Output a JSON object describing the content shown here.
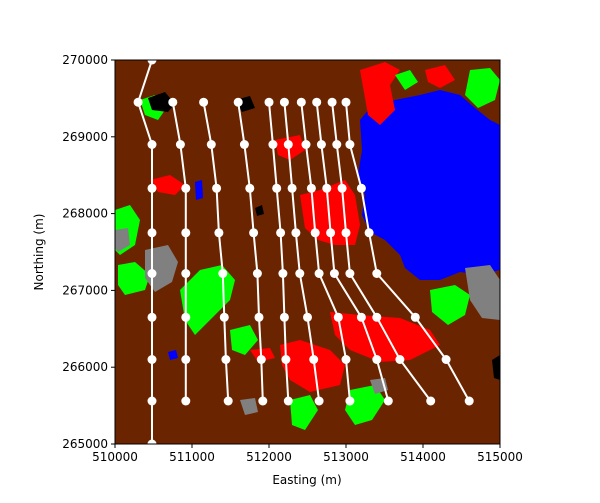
{
  "chart_data": {
    "type": "line",
    "xlabel": "Easting (m)",
    "ylabel": "Northing (m)",
    "xlim": [
      510000,
      515000
    ],
    "ylim": [
      265000,
      270000
    ],
    "xticks": [
      510000,
      511000,
      512000,
      513000,
      514000,
      515000
    ],
    "xtick_labels": [
      "510000",
      "511000",
      "512000",
      "513000",
      "514000",
      "515000"
    ],
    "yticks": [
      265000,
      266000,
      267000,
      268000,
      269000,
      270000
    ],
    "ytick_labels": [
      "265000",
      "266000",
      "267000",
      "268000",
      "269000",
      "270000"
    ],
    "background": "land-cover raster",
    "land_cover_colors": {
      "land": "#6b2400",
      "water": "#0000ff",
      "urban": "#ff0000",
      "grass": "#00ff00",
      "rock": "#808080",
      "shadow": "#000000"
    },
    "line_color": "#ffffff",
    "marker": "circle",
    "series": [
      {
        "x": [
          510300,
          510480,
          510480,
          510480,
          510480,
          510480,
          510480,
          510480,
          510480,
          510480
        ],
        "y": [
          269450,
          268900,
          268330,
          267750,
          267220,
          266650,
          266100,
          265560,
          265000,
          270000
        ]
      },
      {
        "x": [
          510750,
          510850,
          510920,
          510920,
          510920,
          510920,
          510920,
          510920
        ],
        "y": [
          269450,
          268900,
          268330,
          267750,
          267220,
          266650,
          266100,
          265560
        ]
      },
      {
        "x": [
          511150,
          511250,
          511320,
          511350,
          511400,
          511420,
          511440,
          511470
        ],
        "y": [
          269450,
          268900,
          268330,
          267750,
          267220,
          266650,
          266100,
          265560
        ]
      },
      {
        "x": [
          511600,
          511680,
          511750,
          511800,
          511850,
          511870,
          511900,
          511920
        ],
        "y": [
          269450,
          268900,
          268330,
          267750,
          267220,
          266650,
          266100,
          265560
        ]
      },
      {
        "x": [
          512000,
          512050,
          512100,
          512150,
          512180,
          512200,
          512220,
          512250
        ],
        "y": [
          269450,
          268900,
          268330,
          267750,
          267220,
          266650,
          266100,
          265560
        ]
      },
      {
        "x": [
          512200,
          512250,
          512300,
          512350,
          512400,
          512500,
          512580,
          512650
        ],
        "y": [
          269450,
          268900,
          268330,
          267750,
          267220,
          266650,
          266100,
          265560
        ]
      },
      {
        "x": [
          512420,
          512480,
          512550,
          512600,
          512650,
          512900,
          513000,
          513050
        ],
        "y": [
          269450,
          268900,
          268330,
          267750,
          267220,
          266650,
          266100,
          265560
        ]
      },
      {
        "x": [
          512620,
          512680,
          512750,
          512800,
          512850,
          513200,
          513400,
          513550
        ],
        "y": [
          269450,
          268900,
          268330,
          267750,
          267220,
          266650,
          266100,
          265560
        ]
      },
      {
        "x": [
          512820,
          512880,
          512950,
          513000,
          513050,
          513400,
          513700,
          514100
        ],
        "y": [
          269450,
          268900,
          268330,
          267750,
          267220,
          266650,
          266100,
          265560
        ]
      },
      {
        "x": [
          513000,
          513050,
          513200,
          513300,
          513400,
          513900,
          514300,
          514600
        ],
        "y": [
          269450,
          268900,
          268330,
          267750,
          267220,
          266650,
          266100,
          265560
        ]
      }
    ]
  }
}
